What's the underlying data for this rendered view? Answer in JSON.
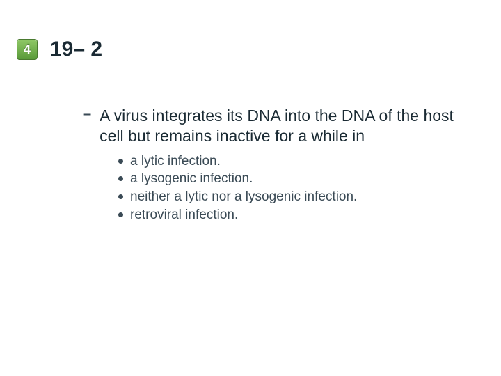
{
  "badge": {
    "number": "4",
    "bg_gradient_top": "#8fc866",
    "bg_gradient_bottom": "#5a9a3a",
    "border_color": "#4a7a30",
    "text_color": "#ffffff"
  },
  "title": "19– 2",
  "title_color": "#1a2a33",
  "title_fontsize": 30,
  "dash": "–",
  "question": "A virus integrates its DNA into the DNA of the host cell but remains inactive for a while in",
  "question_color": "#1a2a33",
  "question_fontsize": 23,
  "options": [
    "a lytic infection.",
    "a lysogenic infection.",
    "neither a lytic nor a lysogenic infection.",
    "retroviral infection."
  ],
  "option_color": "#3a4a55",
  "option_fontsize": 19,
  "bullet_color": "#3a4a55",
  "background_color": "#ffffff"
}
